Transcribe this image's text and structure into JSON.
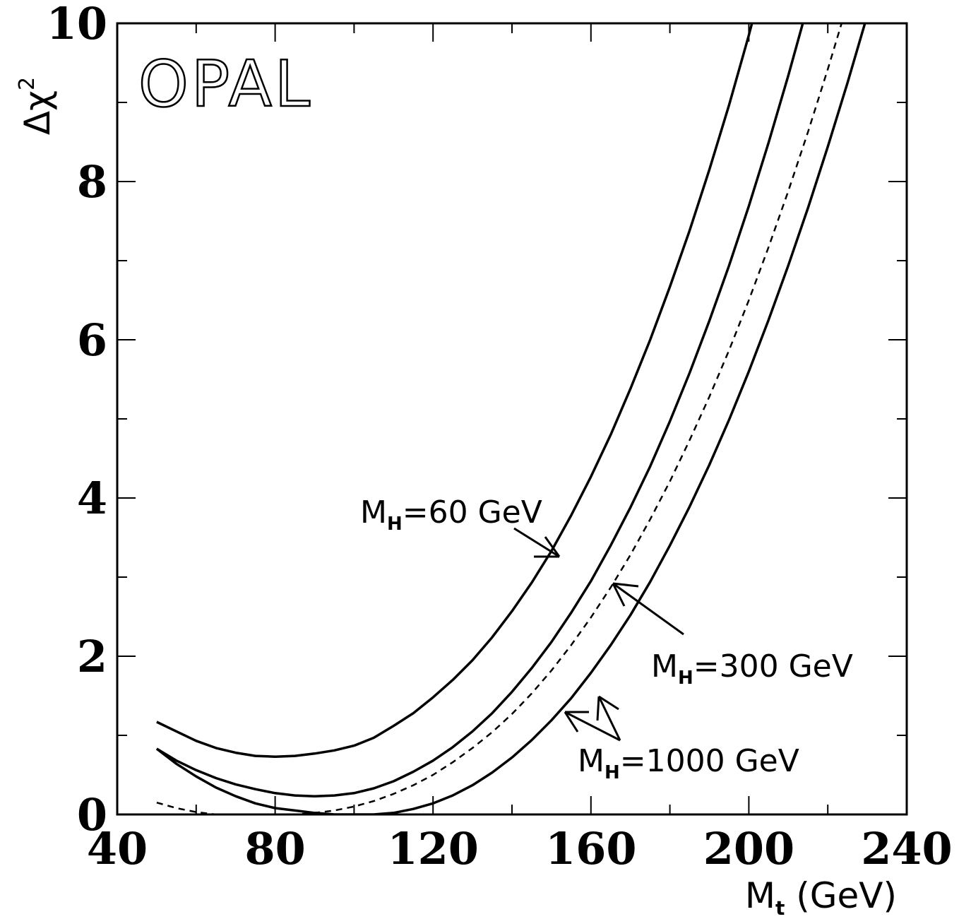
{
  "chart_data": {
    "type": "line",
    "logo": "OPAL",
    "xlabel": {
      "main": "M",
      "sub": "t",
      "rest": " (GeV)"
    },
    "ylabel": {
      "main": "Δχ",
      "sup": "2"
    },
    "xlim": [
      40,
      240
    ],
    "ylim": [
      0,
      10
    ],
    "xticks": [
      40,
      80,
      120,
      160,
      200,
      240
    ],
    "yticks": [
      0,
      2,
      4,
      6,
      8,
      10
    ],
    "grid": false,
    "series": [
      {
        "style": "solid",
        "x": [
          50,
          55,
          60,
          65,
          70,
          75,
          80,
          85,
          90,
          95,
          100,
          105,
          110,
          115,
          120,
          125,
          130,
          135,
          140,
          145,
          150,
          155,
          160,
          165,
          170,
          175,
          180,
          185,
          190,
          195,
          200,
          205,
          208
        ],
        "y": [
          1.17,
          1.05,
          0.93,
          0.84,
          0.78,
          0.74,
          0.73,
          0.74,
          0.77,
          0.81,
          0.87,
          0.97,
          1.12,
          1.28,
          1.48,
          1.7,
          1.95,
          2.24,
          2.57,
          2.93,
          3.33,
          3.78,
          4.27,
          4.8,
          5.38,
          6.0,
          6.67,
          7.38,
          8.15,
          8.97,
          9.85,
          10.8,
          11.4
        ]
      },
      {
        "style": "solid",
        "x": [
          50,
          55,
          60,
          65,
          70,
          75,
          80,
          85,
          90,
          95,
          100,
          105,
          110,
          115,
          120,
          125,
          130,
          135,
          140,
          145,
          150,
          155,
          160,
          165,
          170,
          175,
          180,
          185,
          190,
          195,
          200,
          205,
          210,
          215,
          220
        ],
        "y": [
          0.83,
          0.68,
          0.56,
          0.46,
          0.38,
          0.32,
          0.27,
          0.24,
          0.23,
          0.24,
          0.27,
          0.33,
          0.42,
          0.54,
          0.68,
          0.85,
          1.05,
          1.28,
          1.55,
          1.85,
          2.18,
          2.55,
          2.95,
          3.4,
          3.88,
          4.4,
          4.97,
          5.58,
          6.24,
          6.94,
          7.69,
          8.49,
          9.34,
          10.24,
          11.2
        ]
      },
      {
        "style": "dashed",
        "x": [
          50,
          55,
          60,
          65,
          70,
          75,
          80,
          85,
          90,
          95,
          100,
          105,
          110,
          115,
          120,
          125,
          130,
          135,
          140,
          145,
          150,
          155,
          160,
          165,
          170,
          175,
          180,
          185,
          190,
          195,
          200,
          205,
          210,
          215,
          220,
          225,
          228
        ],
        "y": [
          0.15,
          0.08,
          0.03,
          0.0,
          0.0,
          0.0,
          0.0,
          0.0,
          0.02,
          0.05,
          0.1,
          0.17,
          0.26,
          0.37,
          0.5,
          0.66,
          0.84,
          1.04,
          1.27,
          1.53,
          1.82,
          2.14,
          2.49,
          2.87,
          3.28,
          3.73,
          4.21,
          4.73,
          5.28,
          5.87,
          6.5,
          7.17,
          7.88,
          8.63,
          9.42,
          10.25,
          10.8
        ]
      },
      {
        "style": "solid",
        "x": [
          50,
          55,
          60,
          65,
          70,
          75,
          80,
          85,
          90,
          95,
          100,
          105,
          110,
          115,
          120,
          125,
          130,
          135,
          140,
          145,
          150,
          155,
          160,
          165,
          170,
          175,
          180,
          185,
          190,
          195,
          200,
          205,
          210,
          215,
          220,
          225,
          230,
          233
        ],
        "y": [
          0.83,
          0.64,
          0.48,
          0.34,
          0.23,
          0.14,
          0.08,
          0.05,
          0.02,
          0.0,
          0.0,
          0.0,
          0.02,
          0.07,
          0.14,
          0.24,
          0.37,
          0.53,
          0.72,
          0.94,
          1.19,
          1.47,
          1.79,
          2.14,
          2.52,
          2.94,
          3.4,
          3.89,
          4.42,
          4.99,
          5.6,
          6.25,
          6.94,
          7.67,
          8.44,
          9.25,
          10.1,
          10.8
        ]
      }
    ],
    "annotations": [
      {
        "main": "M",
        "sub": "H",
        "rest": "=60 GeV"
      },
      {
        "main": "M",
        "sub": "H",
        "rest": "=300 GeV"
      },
      {
        "main": "M",
        "sub": "H",
        "rest": "=1000 GeV"
      }
    ]
  }
}
